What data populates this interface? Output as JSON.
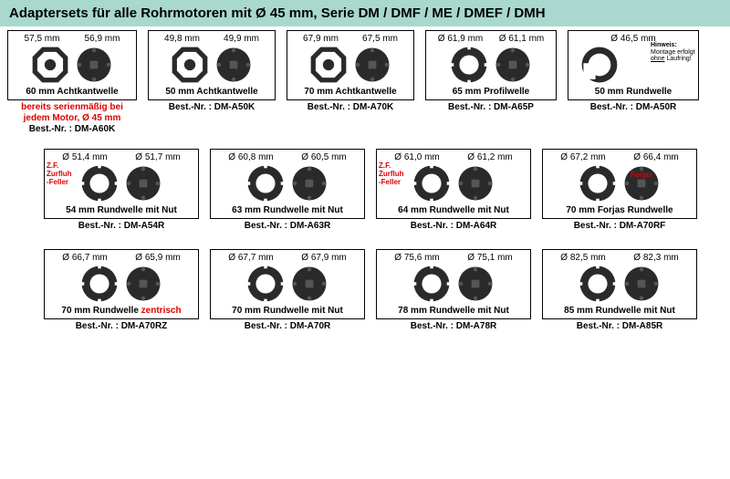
{
  "header": "Adaptersets für alle Rohrmotoren mit Ø 45 mm, Serie DM / DMF / ME / DMEF / DMH",
  "items": [
    {
      "d1": "57,5 mm",
      "d2": "56,9 mm",
      "title": "60 mm Achtkantwelle",
      "below_red1": "bereits serienmäßig bei",
      "below_red2": "jedem Motor, Ø 45 mm",
      "best": "Best.-Nr. : DM-A60K",
      "shape": "oct",
      "w": 142
    },
    {
      "d1": "49,8 mm",
      "d2": "49,9 mm",
      "title": "50 mm Achtkantwelle",
      "best": "Best.-Nr. : DM-A50K",
      "shape": "oct",
      "w": 140
    },
    {
      "d1": "67,9 mm",
      "d2": "67,5 mm",
      "title": "70 mm Achtkantwelle",
      "best": "Best.-Nr. : DM-A70K",
      "shape": "oct",
      "w": 140
    },
    {
      "d1": "Ø 61,9 mm",
      "d2": "Ø 61,1 mm",
      "title": "65 mm Profilwelle",
      "best": "Best.-Nr. : DM-A65P",
      "shape": "round",
      "w": 144
    },
    {
      "d1": "Ø 46,5 mm",
      "d2": "",
      "title": "50 mm Rundwelle",
      "best": "Best.-Nr. : DM-A50R",
      "shape": "half",
      "w": 144,
      "hint_title": "Hinweis:",
      "hint_l1": "Montage erfolgt",
      "hint_l2_u": "ohne",
      "hint_l2_rest": " Laufring!"
    },
    {
      "d1": "Ø 51,4 mm",
      "d2": "Ø 51,7 mm",
      "title": "54 mm Rundwelle mit Nut",
      "best": "Best.-Nr. : DM-A54R",
      "shape": "round",
      "w": 170,
      "overlay_l1": "Z.F.",
      "overlay_l2": "Zurfluh",
      "overlay_l3": "-Feller"
    },
    {
      "d1": "Ø 60,8 mm",
      "d2": "Ø 60,5 mm",
      "title": "63 mm Rundwelle mit Nut",
      "best": "Best.-Nr. : DM-A63R",
      "shape": "round",
      "w": 170
    },
    {
      "d1": "Ø 61,0 mm",
      "d2": "Ø 61,2 mm",
      "title": "64 mm Rundwelle mit Nut",
      "best": "Best.-Nr. : DM-A64R",
      "shape": "round",
      "w": 170,
      "overlay_l1": "Z.F.",
      "overlay_l2": "Zurfluh",
      "overlay_l3": "-Feller"
    },
    {
      "d1": "Ø 67,2 mm",
      "d2": "Ø 66,4 mm",
      "title": "70 mm Forjas Rundwelle",
      "best": "Best.-Nr. : DM-A70RF",
      "shape": "round",
      "w": 170,
      "overlay_r": "Forjas"
    },
    {
      "d1": "Ø 66,7 mm",
      "d2": "Ø 65,9 mm",
      "title_pre": "70 mm Rundwelle ",
      "title_red": "zentrisch",
      "best": "Best.-Nr. : DM-A70RZ",
      "shape": "round",
      "w": 170
    },
    {
      "d1": "Ø 67,7 mm",
      "d2": "Ø 67,9 mm",
      "title": "70 mm Rundwelle mit Nut",
      "best": "Best.-Nr. : DM-A70R",
      "shape": "round",
      "w": 170
    },
    {
      "d1": "Ø 75,6 mm",
      "d2": "Ø 75,1 mm",
      "title": "78 mm Rundwelle mit Nut",
      "best": "Best.-Nr. : DM-A78R",
      "shape": "round",
      "w": 170
    },
    {
      "d1": "Ø 82,5 mm",
      "d2": "Ø 82,3 mm",
      "title": "85 mm Rundwelle mit Nut",
      "best": "Best.-Nr. : DM-A85R",
      "shape": "round",
      "w": 170
    }
  ],
  "colors": {
    "ring": "#2a2a2a",
    "header_bg": "#a8d8ce",
    "red": "#d00000"
  }
}
